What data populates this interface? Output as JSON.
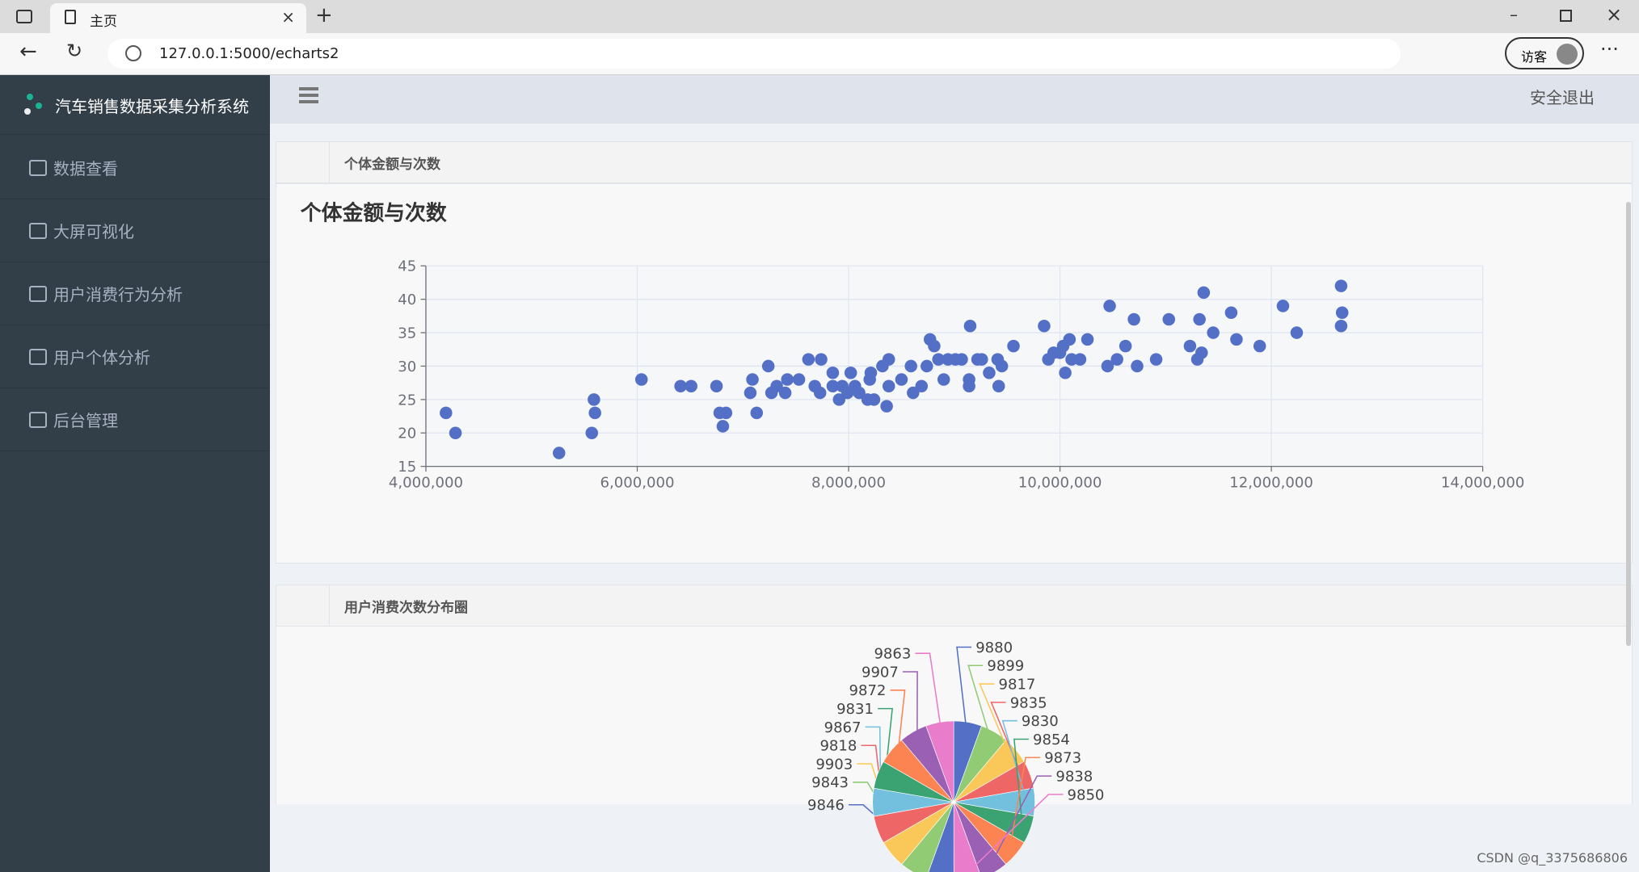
{
  "browser": {
    "tab_title": "主页",
    "url": "127.0.0.1:5000/echarts2",
    "profile": "访客"
  },
  "sidebar": {
    "brand": "汽车销售数据采集分析系统",
    "menu": [
      "数据查看",
      "大屏可视化",
      "用户消费行为分析",
      "用户个体分析",
      "后台管理"
    ]
  },
  "header": {
    "logout": "安全退出"
  },
  "panels": [
    "个体金额与次数",
    "用户消费次数分布圈"
  ],
  "chart_data": [
    {
      "type": "scatter",
      "title": "个体金额与次数",
      "x": [
        4190000,
        4280000,
        5260000,
        5570000,
        5590000,
        5600000,
        6040000,
        6410000,
        6510000,
        6750000,
        6780000,
        6840000,
        6810000,
        7070000,
        7090000,
        7130000,
        7240000,
        7270000,
        7320000,
        7400000,
        7420000,
        7530000,
        7620000,
        7680000,
        7730000,
        7740000,
        7850000,
        7850000,
        7910000,
        7940000,
        7990000,
        8020000,
        8060000,
        8100000,
        8180000,
        8200000,
        8210000,
        8240000,
        8320000,
        8360000,
        8380000,
        8380000,
        8500000,
        8590000,
        8610000,
        8690000,
        8740000,
        8770000,
        8810000,
        8850000,
        8900000,
        8940000,
        9010000,
        9070000,
        9140000,
        9140000,
        9150000,
        9220000,
        9260000,
        9330000,
        9410000,
        9420000,
        9450000,
        9560000,
        9850000,
        9890000,
        9940000,
        10000000,
        10030000,
        10050000,
        10090000,
        10110000,
        10190000,
        10260000,
        10450000,
        10470000,
        10540000,
        10620000,
        10700000,
        10730000,
        10910000,
        11030000,
        11230000,
        11300000,
        11320000,
        11340000,
        11360000,
        11450000,
        11620000,
        11670000,
        11890000,
        12110000,
        12240000,
        12660000,
        12670000,
        12660000
      ],
      "values": [
        23,
        20,
        17,
        20,
        25,
        23,
        28,
        27,
        27,
        27,
        23,
        23,
        21,
        26,
        28,
        23,
        30,
        26,
        27,
        26,
        28,
        28,
        31,
        27,
        26,
        31,
        29,
        27,
        25,
        27,
        26,
        29,
        27,
        26,
        25,
        28,
        29,
        25,
        30,
        24,
        31,
        27,
        28,
        30,
        26,
        27,
        30,
        34,
        33,
        31,
        28,
        31,
        31,
        31,
        28,
        27,
        36,
        31,
        31,
        29,
        31,
        27,
        30,
        33,
        36,
        31,
        32,
        32,
        33,
        29,
        34,
        31,
        31,
        34,
        30,
        39,
        31,
        33,
        37,
        30,
        31,
        37,
        33,
        31,
        37,
        32,
        41,
        35,
        38,
        34,
        33,
        39,
        35,
        42,
        38,
        36
      ],
      "color": "#5470c6",
      "xlim": [
        4000000,
        14000000
      ],
      "xticks": [
        {
          "value": 4000000,
          "label": "4,000,000"
        },
        {
          "value": 6000000,
          "label": "6,000,000"
        },
        {
          "value": 8000000,
          "label": "8,000,000"
        },
        {
          "value": 10000000,
          "label": "10,000,000"
        },
        {
          "value": 12000000,
          "label": "12,000,000"
        },
        {
          "value": 14000000,
          "label": "14,000,000"
        }
      ],
      "ylim": [
        15,
        45
      ],
      "yticks": [
        15,
        20,
        25,
        30,
        35,
        40,
        45
      ],
      "grid": true
    },
    {
      "type": "pie",
      "values": [
        9880,
        9899,
        9817,
        9835,
        9830,
        9854,
        9873,
        9838,
        9850,
        9846,
        9843,
        9903,
        9818,
        9867,
        9831,
        9872,
        9907,
        9863
      ],
      "colors": [
        "#5470c6",
        "#91cc75",
        "#fac858",
        "#ee6666",
        "#73c0de",
        "#3ba272",
        "#fc8452",
        "#9a60b4",
        "#ea7ccc"
      ]
    }
  ],
  "watermark": "CSDN @q_3375686806"
}
